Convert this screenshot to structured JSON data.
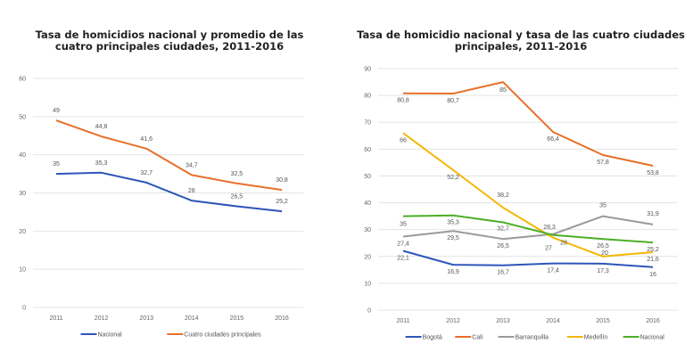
{
  "chart_data": [
    {
      "type": "line",
      "title": "Tasa de homicidios nacional y promedio de las cuatro principales ciudades, 2011-2016",
      "title_lines": [
        "Tasa de homicidios nacional y promedio de las",
        "cuatro principales ciudades, 2011-2016"
      ],
      "xlabel": "",
      "ylabel": "",
      "categories": [
        "2011",
        "2012",
        "2013",
        "2014",
        "2015",
        "2016"
      ],
      "ylim": [
        0,
        60
      ],
      "yticks": [
        0,
        10,
        20,
        30,
        40,
        50,
        60
      ],
      "grid": true,
      "legend": "bottom",
      "series": [
        {
          "name": "Nacional",
          "color": "#2e55b8",
          "values": [
            35,
            35.3,
            32.7,
            28,
            26.5,
            25.2
          ],
          "labels": [
            "35",
            "35,3",
            "32,7",
            "28",
            "26,5",
            "25,2"
          ],
          "label_pos": "above"
        },
        {
          "name": "Cuatro ciudades principales",
          "color": "#e8702a",
          "values": [
            49,
            44.8,
            41.6,
            34.7,
            32.5,
            30.8
          ],
          "labels": [
            "49",
            "44,8",
            "41,6",
            "34,7",
            "32,5",
            "30,8"
          ],
          "label_pos": "above"
        }
      ]
    },
    {
      "type": "line",
      "title": "Tasa de homicidio nacional y tasa de las cuatro ciudades principales, 2011-2016",
      "title_lines": [
        "Tasa de homicidio nacional y tasa de las cuatro ciudades",
        "principales, 2011-2016"
      ],
      "xlabel": "",
      "ylabel": "",
      "categories": [
        "2011",
        "2012",
        "2013",
        "2014",
        "2015",
        "2016"
      ],
      "ylim": [
        0,
        90
      ],
      "yticks": [
        0,
        10,
        20,
        30,
        40,
        50,
        60,
        70,
        80,
        90
      ],
      "grid": true,
      "legend": "bottom",
      "series": [
        {
          "name": "Bogotá",
          "color": "#2e55b8",
          "values": [
            22.1,
            16.9,
            16.7,
            17.4,
            17.3,
            16
          ],
          "labels": [
            "22,1",
            "16,9",
            "16,7",
            "17,4",
            "17,3",
            "16"
          ],
          "label_pos": "below"
        },
        {
          "name": "Cali",
          "color": "#e8702a",
          "values": [
            80.8,
            80.7,
            85,
            66.4,
            57.8,
            53.8
          ],
          "labels": [
            "80,8",
            "80,7",
            "85",
            "66,4",
            "57,8",
            "53,8"
          ],
          "label_pos": "below"
        },
        {
          "name": "Barranquilla",
          "color": "#9a9a9a",
          "values": [
            27.4,
            29.5,
            26.5,
            28.3,
            35,
            31.9
          ],
          "labels": [
            "27,4",
            "29,5",
            "26,5",
            "28,3",
            "35",
            "31,9"
          ],
          "label_pos": "below"
        },
        {
          "name": "Medellín",
          "color": "#f2b705",
          "values": [
            66,
            52.2,
            38.2,
            27,
            20,
            21.6
          ],
          "labels": [
            "66",
            "52,2",
            "38,2",
            "27",
            "20",
            "21,6"
          ],
          "label_pos": "below"
        },
        {
          "name": "Nacional",
          "color": "#4caf26",
          "values": [
            35,
            35.3,
            32.7,
            28,
            26.5,
            25.2
          ],
          "labels": [
            "35",
            "35,3",
            "32,7",
            "28",
            "26,5",
            "25,2"
          ],
          "label_pos": "below"
        }
      ]
    }
  ]
}
